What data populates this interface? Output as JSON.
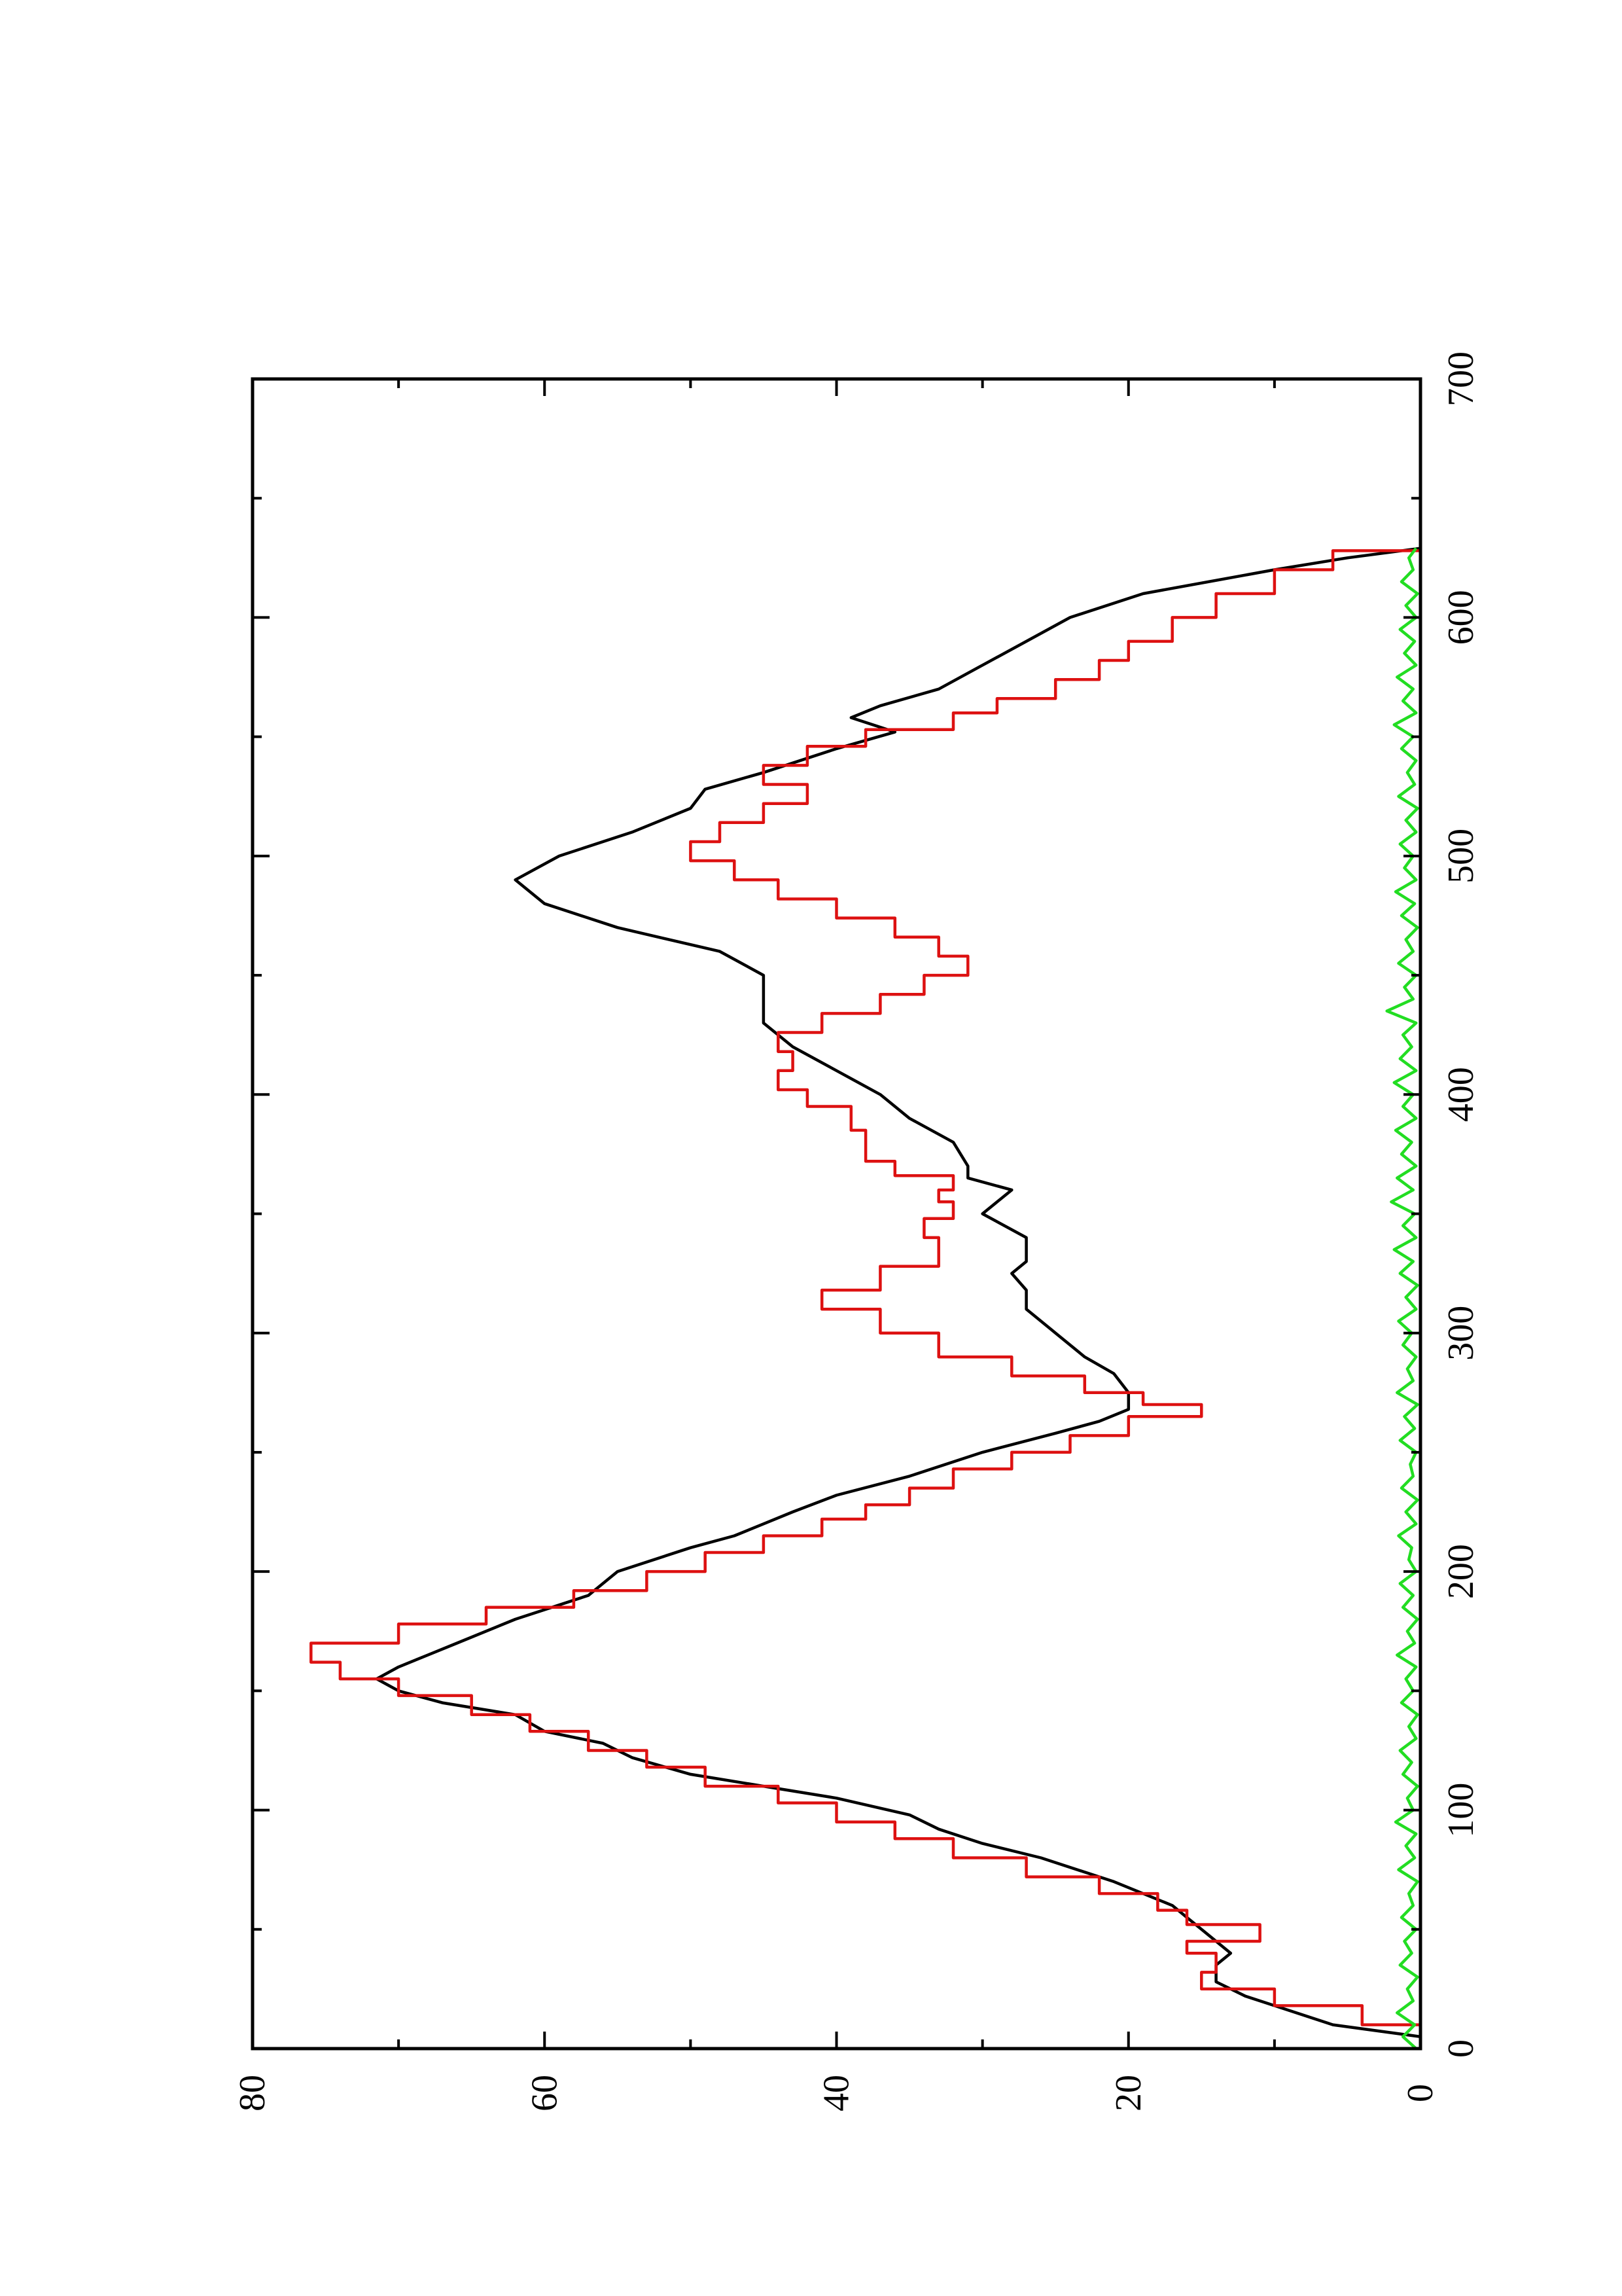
{
  "chart_data": {
    "type": "line",
    "title": "",
    "xlabel": "",
    "ylabel": "",
    "xlim": [
      0,
      700
    ],
    "ylim": [
      0,
      80
    ],
    "orientation": "rotated 90° counter-clockwise (x axis runs upward along the right edge)",
    "x_ticks": [
      0,
      100,
      200,
      300,
      400,
      500,
      600,
      700
    ],
    "y_ticks": [
      0,
      20,
      40,
      60,
      80
    ],
    "grid": false,
    "legend": "none",
    "series": [
      {
        "color": "#000000",
        "style": "smooth",
        "points": [
          [
            5,
            0
          ],
          [
            10,
            6
          ],
          [
            18,
            10
          ],
          [
            22,
            12
          ],
          [
            28,
            14
          ],
          [
            35,
            14
          ],
          [
            40,
            13
          ],
          [
            45,
            14
          ],
          [
            50,
            15
          ],
          [
            55,
            16
          ],
          [
            60,
            17
          ],
          [
            70,
            21
          ],
          [
            80,
            26
          ],
          [
            86,
            30
          ],
          [
            92,
            33
          ],
          [
            98,
            35
          ],
          [
            105,
            40
          ],
          [
            110,
            45
          ],
          [
            115,
            50
          ],
          [
            122,
            54
          ],
          [
            128,
            56
          ],
          [
            133,
            60
          ],
          [
            140,
            62
          ],
          [
            145,
            67
          ],
          [
            150,
            70
          ],
          [
            155,
            71.5
          ],
          [
            160,
            70
          ],
          [
            165,
            68
          ],
          [
            170,
            66
          ],
          [
            180,
            62
          ],
          [
            190,
            57
          ],
          [
            200,
            55
          ],
          [
            210,
            50
          ],
          [
            215,
            47
          ],
          [
            220,
            45
          ],
          [
            225,
            43
          ],
          [
            232,
            40
          ],
          [
            240,
            35
          ],
          [
            250,
            30
          ],
          [
            258,
            25
          ],
          [
            263,
            22
          ],
          [
            268,
            20
          ],
          [
            275,
            20
          ],
          [
            283,
            21
          ],
          [
            290,
            23
          ],
          [
            300,
            25
          ],
          [
            310,
            27
          ],
          [
            318,
            27
          ],
          [
            325,
            28
          ],
          [
            330,
            27
          ],
          [
            340,
            27
          ],
          [
            350,
            30
          ],
          [
            360,
            28
          ],
          [
            365,
            31
          ],
          [
            370,
            31
          ],
          [
            380,
            32
          ],
          [
            390,
            35
          ],
          [
            400,
            37
          ],
          [
            410,
            40
          ],
          [
            420,
            43
          ],
          [
            430,
            45
          ],
          [
            440,
            45
          ],
          [
            450,
            45
          ],
          [
            460,
            48
          ],
          [
            470,
            55
          ],
          [
            480,
            60
          ],
          [
            490,
            62
          ],
          [
            500,
            59
          ],
          [
            510,
            54
          ],
          [
            520,
            50
          ],
          [
            528,
            49
          ],
          [
            535,
            45
          ],
          [
            545,
            40
          ],
          [
            552,
            36
          ],
          [
            558,
            39
          ],
          [
            563,
            37
          ],
          [
            570,
            33
          ],
          [
            580,
            30
          ],
          [
            590,
            27
          ],
          [
            600,
            24
          ],
          [
            610,
            19
          ],
          [
            620,
            10
          ],
          [
            625,
            5
          ],
          [
            629,
            0
          ]
        ]
      },
      {
        "color": "#dd1111",
        "style": "stepped",
        "points": [
          [
            5,
            0
          ],
          [
            10,
            4
          ],
          [
            18,
            10
          ],
          [
            25,
            15
          ],
          [
            32,
            14
          ],
          [
            40,
            16
          ],
          [
            45,
            11
          ],
          [
            52,
            16
          ],
          [
            58,
            18
          ],
          [
            65,
            22
          ],
          [
            72,
            27
          ],
          [
            80,
            32
          ],
          [
            88,
            36
          ],
          [
            95,
            40
          ],
          [
            103,
            44
          ],
          [
            110,
            49
          ],
          [
            118,
            53
          ],
          [
            125,
            57
          ],
          [
            133,
            61
          ],
          [
            140,
            65
          ],
          [
            148,
            70
          ],
          [
            155,
            74
          ],
          [
            162,
            76
          ],
          [
            170,
            70
          ],
          [
            178,
            64
          ],
          [
            185,
            58
          ],
          [
            192,
            53
          ],
          [
            200,
            49
          ],
          [
            208,
            45
          ],
          [
            215,
            41
          ],
          [
            222,
            38
          ],
          [
            228,
            35
          ],
          [
            235,
            32
          ],
          [
            243,
            28
          ],
          [
            250,
            24
          ],
          [
            257,
            20
          ],
          [
            265,
            15
          ],
          [
            270,
            19
          ],
          [
            275,
            23
          ],
          [
            282,
            28
          ],
          [
            290,
            33
          ],
          [
            300,
            37
          ],
          [
            310,
            41
          ],
          [
            318,
            37
          ],
          [
            328,
            33
          ],
          [
            340,
            34
          ],
          [
            348,
            32
          ],
          [
            355,
            33
          ],
          [
            360,
            32
          ],
          [
            366,
            36
          ],
          [
            372,
            38
          ],
          [
            385,
            39
          ],
          [
            395,
            42
          ],
          [
            402,
            44
          ],
          [
            410,
            43
          ],
          [
            418,
            44
          ],
          [
            426,
            41
          ],
          [
            434,
            37
          ],
          [
            442,
            34
          ],
          [
            450,
            31
          ],
          [
            458,
            33
          ],
          [
            466,
            36
          ],
          [
            474,
            40
          ],
          [
            482,
            44
          ],
          [
            490,
            47
          ],
          [
            498,
            50
          ],
          [
            506,
            48
          ],
          [
            514,
            45
          ],
          [
            522,
            42
          ],
          [
            530,
            45
          ],
          [
            538,
            42
          ],
          [
            546,
            38
          ],
          [
            553,
            32
          ],
          [
            560,
            29
          ],
          [
            566,
            25
          ],
          [
            574,
            22
          ],
          [
            582,
            20
          ],
          [
            590,
            17
          ],
          [
            600,
            14
          ],
          [
            610,
            10
          ],
          [
            620,
            6
          ],
          [
            628,
            0
          ]
        ]
      },
      {
        "color": "#22dd22",
        "style": "noisy",
        "points": [
          [
            0,
            0.3
          ],
          [
            5,
            1.2
          ],
          [
            10,
            0.4
          ],
          [
            15,
            1.6
          ],
          [
            20,
            0.5
          ],
          [
            25,
            0.9
          ],
          [
            30,
            0.2
          ],
          [
            35,
            1.4
          ],
          [
            40,
            0.6
          ],
          [
            45,
            1.1
          ],
          [
            50,
            0.3
          ],
          [
            55,
            1.3
          ],
          [
            60,
            0.5
          ],
          [
            65,
            0.8
          ],
          [
            70,
            0.2
          ],
          [
            75,
            1.5
          ],
          [
            80,
            0.4
          ],
          [
            85,
            1.0
          ],
          [
            90,
            0.3
          ],
          [
            95,
            1.7
          ],
          [
            100,
            0.5
          ],
          [
            105,
            0.9
          ],
          [
            110,
            0.2
          ],
          [
            115,
            1.2
          ],
          [
            120,
            0.6
          ],
          [
            125,
            1.4
          ],
          [
            130,
            0.3
          ],
          [
            135,
            0.8
          ],
          [
            140,
            0.2
          ],
          [
            145,
            1.3
          ],
          [
            150,
            0.5
          ],
          [
            155,
            1.0
          ],
          [
            160,
            0.3
          ],
          [
            165,
            1.6
          ],
          [
            170,
            0.4
          ],
          [
            175,
            0.9
          ],
          [
            180,
            0.2
          ],
          [
            185,
            1.2
          ],
          [
            190,
            0.5
          ],
          [
            195,
            1.4
          ],
          [
            200,
            0.3
          ],
          [
            205,
            0.8
          ],
          [
            210,
            0.6
          ],
          [
            215,
            1.5
          ],
          [
            220,
            0.3
          ],
          [
            225,
            1.0
          ],
          [
            230,
            0.2
          ],
          [
            235,
            1.3
          ],
          [
            240,
            0.5
          ],
          [
            245,
            0.7
          ],
          [
            250,
            0.3
          ],
          [
            255,
            1.4
          ],
          [
            260,
            0.4
          ],
          [
            265,
            1.1
          ],
          [
            270,
            0.2
          ],
          [
            275,
            1.6
          ],
          [
            280,
            0.5
          ],
          [
            285,
            0.9
          ],
          [
            290,
            0.3
          ],
          [
            295,
            1.2
          ],
          [
            300,
            0.6
          ],
          [
            305,
            1.5
          ],
          [
            310,
            0.3
          ],
          [
            315,
            1.0
          ],
          [
            320,
            0.2
          ],
          [
            325,
            1.4
          ],
          [
            330,
            0.5
          ],
          [
            335,
            1.8
          ],
          [
            340,
            0.3
          ],
          [
            345,
            1.2
          ],
          [
            350,
            0.4
          ],
          [
            355,
            2.0
          ],
          [
            360,
            0.5
          ],
          [
            365,
            1.6
          ],
          [
            370,
            0.3
          ],
          [
            375,
            1.3
          ],
          [
            380,
            0.6
          ],
          [
            385,
            1.7
          ],
          [
            390,
            0.3
          ],
          [
            395,
            1.2
          ],
          [
            400,
            0.5
          ],
          [
            405,
            1.8
          ],
          [
            410,
            0.3
          ],
          [
            415,
            1.4
          ],
          [
            420,
            0.6
          ],
          [
            425,
            1.2
          ],
          [
            430,
            0.3
          ],
          [
            435,
            2.3
          ],
          [
            440,
            0.5
          ],
          [
            445,
            1.1
          ],
          [
            450,
            0.3
          ],
          [
            455,
            1.5
          ],
          [
            460,
            0.5
          ],
          [
            465,
            1.0
          ],
          [
            470,
            0.2
          ],
          [
            475,
            1.3
          ],
          [
            480,
            0.4
          ],
          [
            485,
            1.7
          ],
          [
            490,
            0.3
          ],
          [
            495,
            1.1
          ],
          [
            500,
            0.5
          ],
          [
            505,
            1.4
          ],
          [
            510,
            0.3
          ],
          [
            515,
            1.0
          ],
          [
            520,
            0.2
          ],
          [
            525,
            1.5
          ],
          [
            530,
            0.4
          ],
          [
            535,
            0.9
          ],
          [
            540,
            0.3
          ],
          [
            545,
            1.3
          ],
          [
            550,
            0.5
          ],
          [
            555,
            1.8
          ],
          [
            560,
            0.3
          ],
          [
            565,
            1.2
          ],
          [
            570,
            0.5
          ],
          [
            575,
            1.6
          ],
          [
            580,
            0.3
          ],
          [
            585,
            1.1
          ],
          [
            590,
            0.4
          ],
          [
            595,
            1.4
          ],
          [
            600,
            0.3
          ],
          [
            605,
            1.0
          ],
          [
            610,
            0.2
          ],
          [
            615,
            1.3
          ],
          [
            620,
            0.5
          ],
          [
            625,
            0.8
          ],
          [
            629,
            0.3
          ]
        ]
      }
    ]
  }
}
